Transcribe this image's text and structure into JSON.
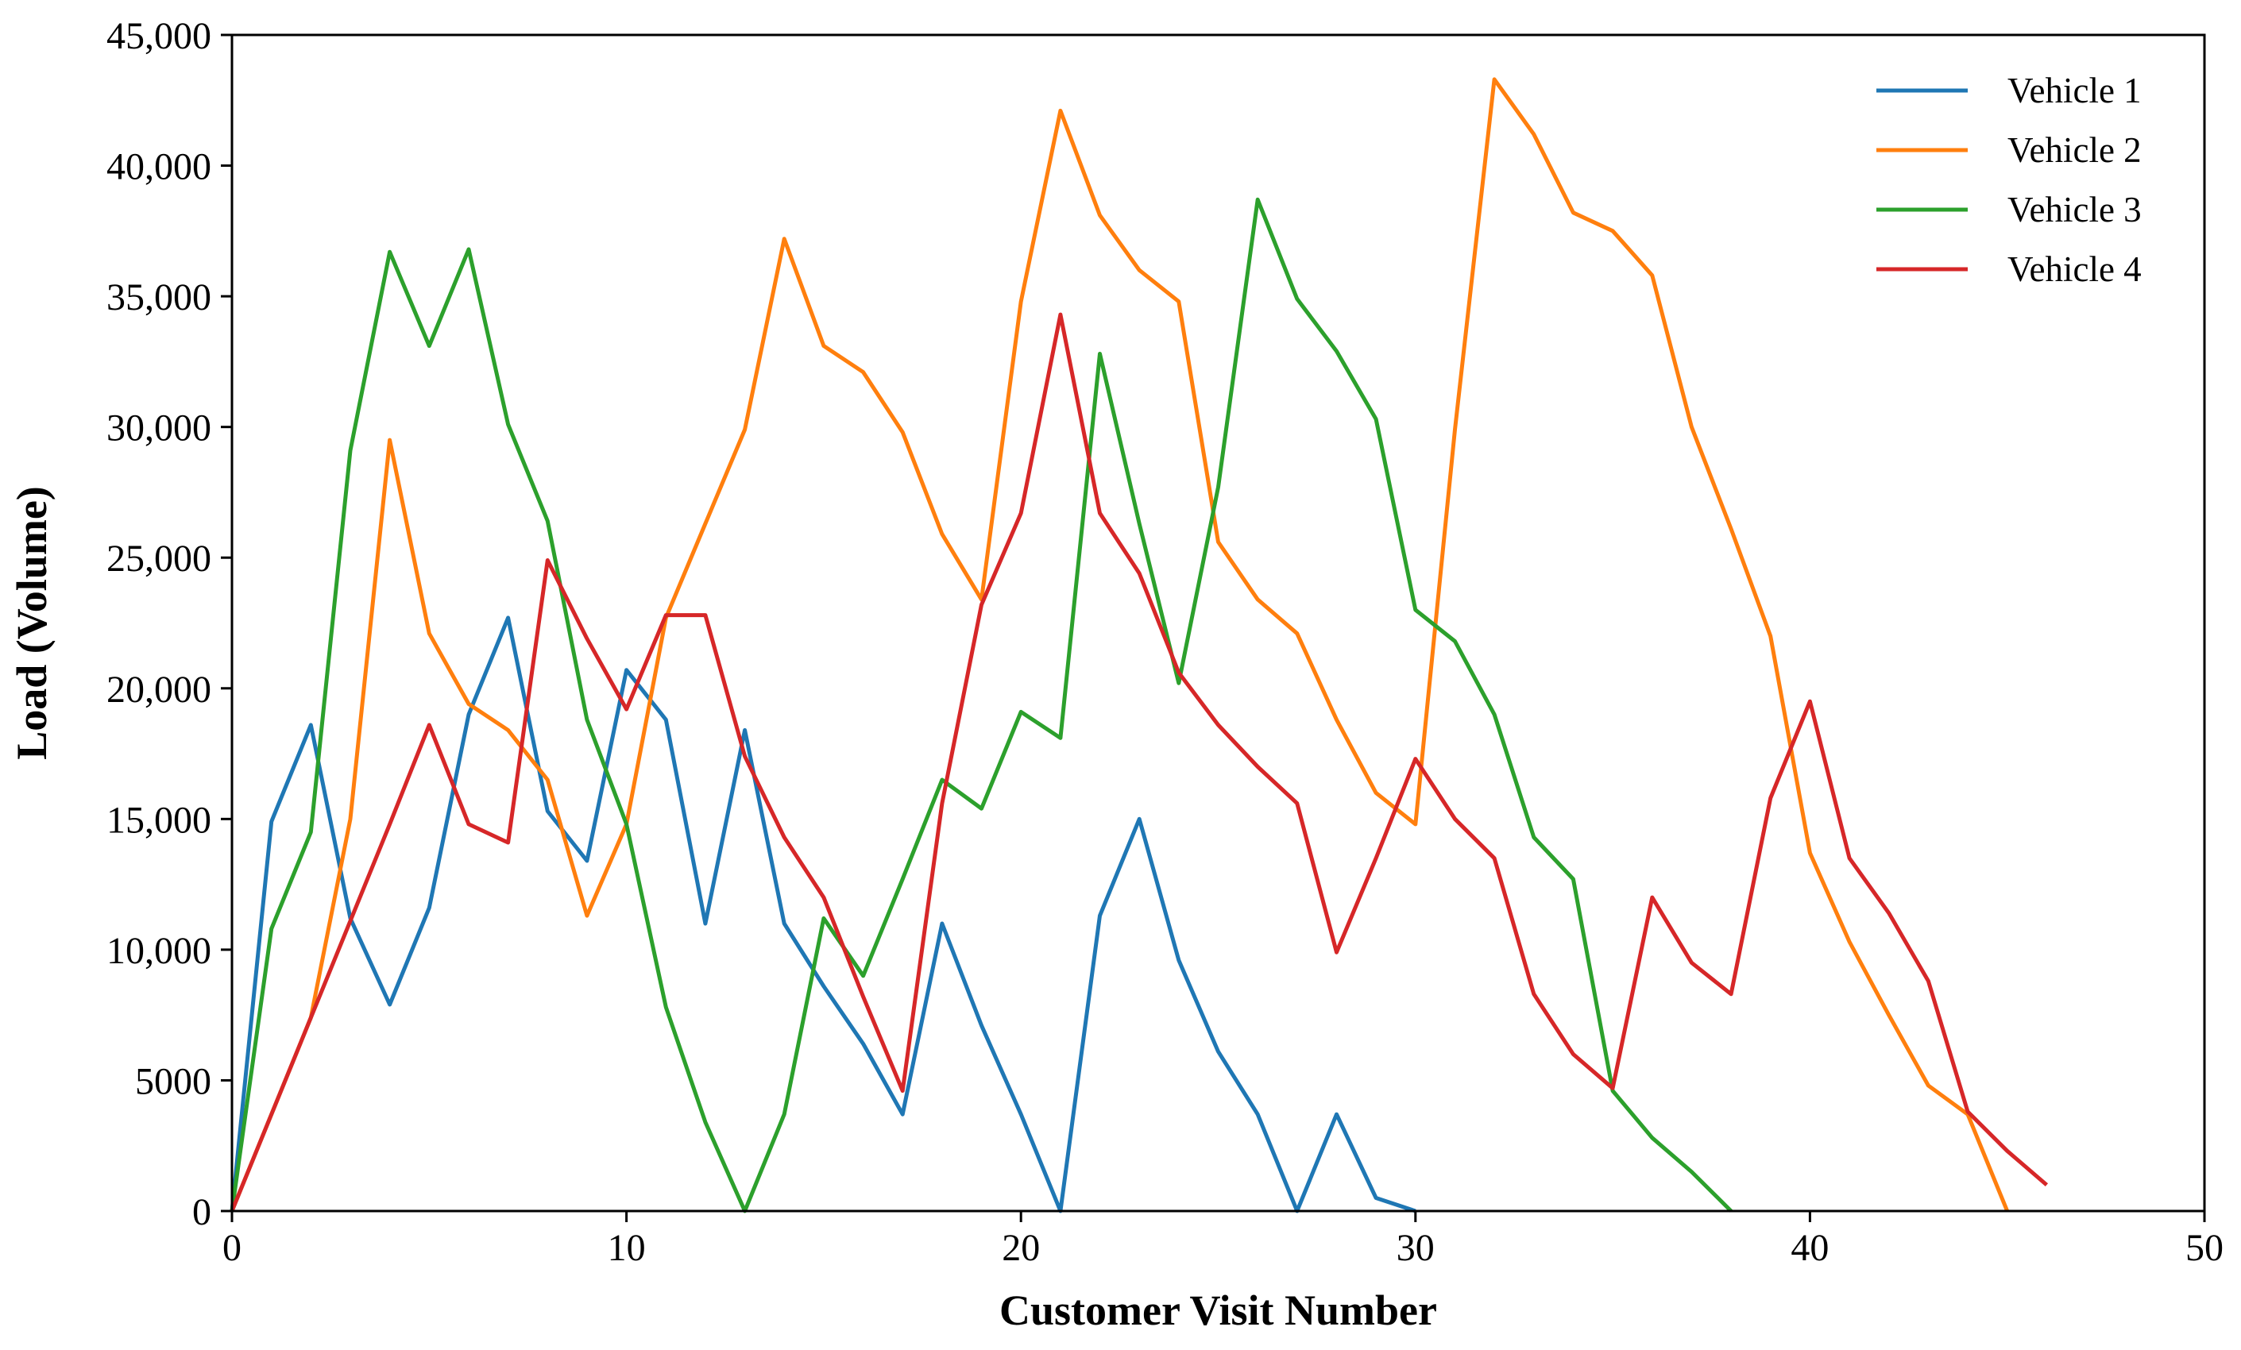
{
  "chart_data": {
    "type": "line",
    "title": "",
    "xlabel": "Customer Visit Number",
    "ylabel": "Load (Volume)",
    "xlim": [
      0,
      50
    ],
    "ylim": [
      0,
      45000
    ],
    "x_ticks": [
      0,
      10,
      20,
      30,
      40,
      50
    ],
    "x_tick_labels": [
      "0",
      "10",
      "20",
      "30",
      "40",
      "50"
    ],
    "y_ticks": [
      0,
      5000,
      10000,
      15000,
      20000,
      25000,
      30000,
      35000,
      40000,
      45000
    ],
    "y_tick_labels": [
      "0",
      "5000",
      "10,000",
      "15,000",
      "20,000",
      "25,000",
      "30,000",
      "35,000",
      "40,000",
      "45,000"
    ],
    "grid": false,
    "legend_position": "top-right",
    "series": [
      {
        "name": "Vehicle 1",
        "color": "#1f77b4",
        "x": [
          0,
          1,
          2,
          3,
          4,
          5,
          6,
          7,
          8,
          9,
          10,
          11,
          12,
          13,
          14,
          15,
          16,
          17,
          18,
          19,
          20,
          21,
          22,
          23,
          24,
          25,
          26,
          27,
          28,
          29,
          30
        ],
        "y": [
          0,
          14900,
          18600,
          11200,
          7900,
          11600,
          19000,
          22700,
          15300,
          13400,
          20700,
          18800,
          11000,
          18400,
          11000,
          8600,
          6400,
          3700,
          11000,
          7100,
          3700,
          0,
          11300,
          15000,
          9600,
          6100,
          3700,
          0,
          3700,
          500,
          0
        ]
      },
      {
        "name": "Vehicle 2",
        "color": "#ff7f0e",
        "x": [
          0,
          1,
          2,
          3,
          4,
          5,
          6,
          7,
          8,
          9,
          10,
          11,
          12,
          13,
          14,
          15,
          16,
          17,
          18,
          19,
          20,
          21,
          22,
          23,
          24,
          25,
          26,
          27,
          28,
          29,
          30,
          31,
          32,
          33,
          34,
          35,
          36,
          37,
          38,
          39,
          40,
          41,
          42,
          43,
          44,
          45
        ],
        "y": [
          0,
          3700,
          7400,
          15000,
          29500,
          22100,
          19400,
          18400,
          16500,
          11300,
          14800,
          22700,
          26300,
          29900,
          37200,
          33100,
          32100,
          29800,
          25900,
          23400,
          34800,
          42100,
          38100,
          36000,
          34800,
          25600,
          23400,
          22100,
          18800,
          16000,
          14800,
          29900,
          43300,
          41200,
          38200,
          37500,
          35800,
          30000,
          26100,
          22000,
          13700,
          10300,
          7500,
          4800,
          3700,
          0
        ]
      },
      {
        "name": "Vehicle 3",
        "color": "#2ca02c",
        "x": [
          0,
          1,
          2,
          3,
          4,
          5,
          6,
          7,
          8,
          9,
          10,
          11,
          12,
          13,
          14,
          15,
          16,
          17,
          18,
          19,
          20,
          21,
          22,
          23,
          24,
          25,
          26,
          27,
          28,
          29,
          30,
          31,
          32,
          33,
          34,
          35,
          36,
          37,
          38
        ],
        "y": [
          0,
          10800,
          14500,
          29100,
          36700,
          33100,
          36800,
          30100,
          26400,
          18800,
          14800,
          7800,
          3400,
          0,
          3700,
          11200,
          9000,
          12700,
          16500,
          15400,
          19100,
          18100,
          32800,
          26300,
          20200,
          27700,
          38700,
          34900,
          32900,
          30300,
          23000,
          21800,
          19000,
          14300,
          12700,
          4600,
          2800,
          1500,
          0
        ]
      },
      {
        "name": "Vehicle 4",
        "color": "#d62728",
        "x": [
          0,
          1,
          2,
          3,
          4,
          5,
          6,
          7,
          8,
          9,
          10,
          11,
          12,
          13,
          14,
          15,
          16,
          17,
          18,
          19,
          20,
          21,
          22,
          23,
          24,
          25,
          26,
          27,
          28,
          29,
          30,
          31,
          32,
          33,
          34,
          35,
          36,
          37,
          38,
          39,
          40,
          41,
          42,
          43,
          44,
          45,
          46
        ],
        "y": [
          0,
          3700,
          7400,
          11100,
          14800,
          18600,
          14800,
          14100,
          24900,
          21900,
          19200,
          22800,
          22800,
          17400,
          14300,
          12000,
          8200,
          4600,
          15600,
          23200,
          26700,
          34300,
          26700,
          24400,
          20600,
          18600,
          17000,
          15600,
          9900,
          13500,
          17300,
          15000,
          13500,
          8300,
          6000,
          4700,
          12000,
          9500,
          8300,
          15800,
          19500,
          13500,
          11400,
          8800,
          3800,
          2300,
          1000
        ]
      }
    ]
  }
}
